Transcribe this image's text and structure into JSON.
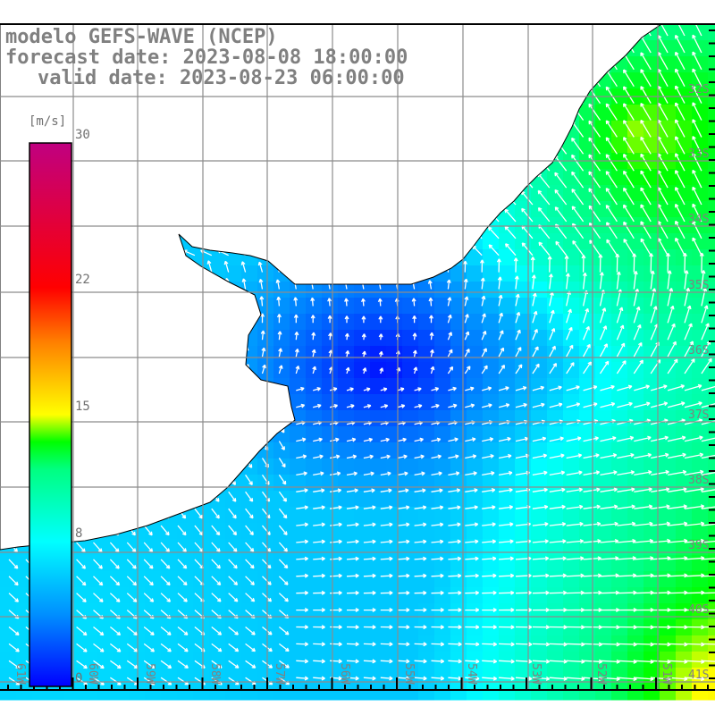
{
  "header": {
    "model": "modelo GEFS-WAVE (NCEP)",
    "forecast": "forecast date: 2023-08-08 18:00:00",
    "valid": "valid date: 2023-08-23 06:00:00"
  },
  "colorbar": {
    "unit": "[m/s]",
    "ticks": [
      {
        "label": "30",
        "value": 30
      },
      {
        "label": "22",
        "value": 22
      },
      {
        "label": "15",
        "value": 15
      },
      {
        "label": "8",
        "value": 8
      },
      {
        "label": "0",
        "value": 0
      }
    ],
    "min": 0,
    "max": 30,
    "colors": [
      "#0000ff",
      "#0090ff",
      "#00ffff",
      "#00ff00",
      "#ffff00",
      "#ff8000",
      "#ff0000",
      "#c00080"
    ]
  },
  "axes": {
    "lat_labels": [
      "32S",
      "33S",
      "34S",
      "35S",
      "36S",
      "37S",
      "38S",
      "39S",
      "40S",
      "41S"
    ],
    "lon_labels": [
      "61W",
      "60W",
      "59W",
      "58W",
      "57W",
      "56W",
      "55W",
      "54W",
      "53W",
      "52W",
      "51W"
    ]
  }
}
